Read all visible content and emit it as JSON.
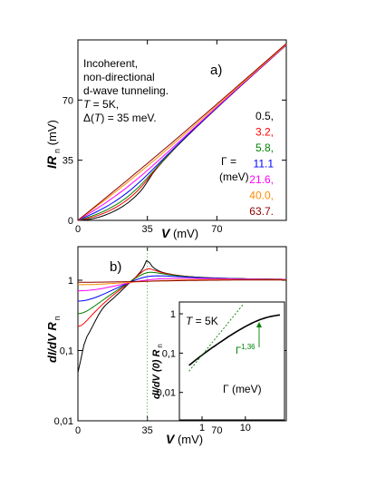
{
  "chart_data": [
    {
      "type": "line",
      "panel_label": "a)",
      "xlabel_symbol": "V",
      "xlabel_unit": " (mV)",
      "ylabel_symbol": "IR",
      "ylabel_sub": "n",
      "ylabel_unit": " (mV)",
      "xlim": [
        0,
        105
      ],
      "ylim": [
        0,
        105
      ],
      "xticks": [
        "0",
        "35",
        "70"
      ],
      "xtick_values": [
        0,
        35,
        70
      ],
      "yticks": [
        "0",
        "35",
        "70"
      ],
      "ytick_values": [
        0,
        35,
        70
      ],
      "annotation_lines": [
        "Incoherent,",
        "non-directional",
        "d-wave tunneling."
      ],
      "annotation_T": {
        "symbol": "T",
        "text": " = 5K,"
      },
      "annotation_delta": {
        "prefix": "Δ(",
        "symbol": "T",
        "suffix": ") = 35 meV."
      },
      "gamma_label": "Γ =",
      "gamma_unit": "(meV)",
      "series": [
        {
          "name": "0.5,",
          "color": "#000000",
          "gamma": 0.5
        },
        {
          "name": "3.2,",
          "color": "#ff0000",
          "gamma": 3.2
        },
        {
          "name": "5.8,",
          "color": "#008000",
          "gamma": 5.8
        },
        {
          "name": "11.1",
          "color": "#0000ff",
          "gamma": 11.1
        },
        {
          "name": "21.6,",
          "color": "#ff00ff",
          "gamma": 21.6
        },
        {
          "name": "40.0,",
          "color": "#ff8c00",
          "gamma": 40.0
        },
        {
          "name": "63.7.",
          "color": "#8b0000",
          "gamma": 63.7
        }
      ]
    },
    {
      "type": "line",
      "panel_label": "b)",
      "yscale": "log",
      "xlabel_symbol": "V",
      "xlabel_unit": " (mV)",
      "ylabel_text": "dI/dV R",
      "ylabel_sub": "n",
      "xlim": [
        0,
        105
      ],
      "ylim": [
        0.01,
        3
      ],
      "xticks": [
        "0",
        "35",
        "70"
      ],
      "xtick_values": [
        0,
        35,
        70
      ],
      "yticks": [
        "1",
        "0,1",
        "0,01"
      ],
      "ytick_values": [
        1,
        0.1,
        0.01
      ],
      "dotted_guide_x": 35
    },
    {
      "type": "line",
      "inset": true,
      "xscale": "log",
      "yscale": "log",
      "xlim": [
        0.3,
        80
      ],
      "ylim": [
        0.002,
        2
      ],
      "xticks": [
        "1",
        "10"
      ],
      "xtick_values": [
        1,
        10
      ],
      "yticks": [
        "1",
        "0,1",
        "0,01"
      ],
      "ytick_values": [
        1,
        0.1,
        0.01
      ],
      "ylabel_text": "dI/dV (0) R",
      "ylabel_sub": "n",
      "xlabel_text": "Γ (meV)",
      "annotation_T": {
        "symbol": "T",
        "text": " = 5K"
      },
      "fit_label_base": "Γ",
      "fit_label_exp": "1,36",
      "fit_exponent": 1.36,
      "fit_color": "#008000",
      "curve_color": "#000000"
    }
  ]
}
